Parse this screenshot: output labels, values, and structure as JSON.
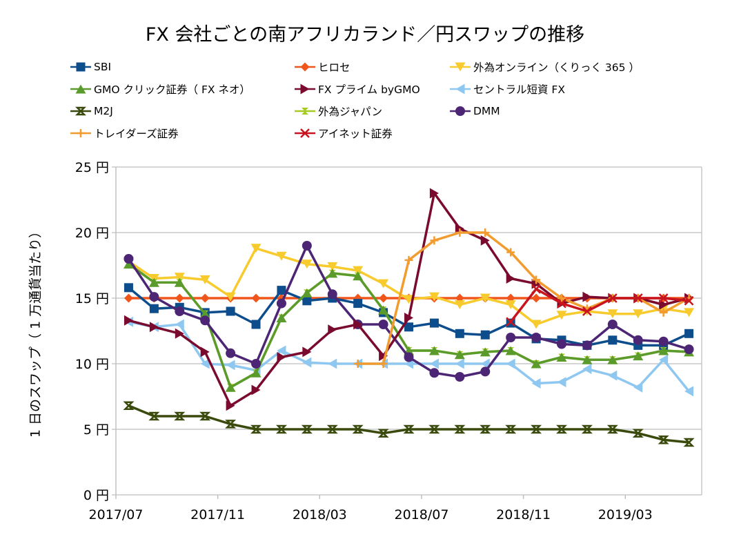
{
  "chart_data": {
    "type": "line",
    "title": "FX 会社ごとの南アフリカランド／円スワップの推移",
    "xlabel": "",
    "ylabel": "1 日のスワップ（ 1 万通貨当たり）",
    "ylim": [
      0,
      25
    ],
    "yticks": [
      0,
      5,
      10,
      15,
      20,
      25
    ],
    "ytick_labels": [
      "0 円",
      "5 円",
      "10 円",
      "15 円",
      "20 円",
      "25 円"
    ],
    "grid": "horizontal",
    "legend_position": "top",
    "x": [
      "2017/07",
      "2017/08",
      "2017/09",
      "2017/10",
      "2017/11",
      "2017/12",
      "2018/01",
      "2018/02",
      "2018/03",
      "2018/04",
      "2018/05",
      "2018/06",
      "2018/07",
      "2018/08",
      "2018/09",
      "2018/10",
      "2018/11",
      "2018/12",
      "2019/01",
      "2019/02",
      "2019/03",
      "2019/04",
      "2019/05"
    ],
    "xtick_labels": [
      "2017/07",
      "2017/11",
      "2018/03",
      "2018/07",
      "2018/11",
      "2019/03"
    ],
    "series": [
      {
        "name": "SBI",
        "color": "#0E4D8C",
        "marker": "square",
        "values": [
          15.8,
          14.2,
          14.3,
          13.9,
          14.0,
          13.0,
          15.6,
          14.8,
          15.0,
          14.6,
          13.9,
          12.8,
          13.1,
          12.3,
          12.2,
          13.1,
          11.9,
          11.8,
          11.4,
          11.8,
          11.4,
          11.4,
          12.3
        ]
      },
      {
        "name": "ヒロセ",
        "color": "#F0561C",
        "marker": "diamond",
        "values": [
          15,
          15,
          15,
          15,
          15,
          15,
          15,
          15,
          15,
          15,
          15,
          15,
          15,
          15,
          15,
          15,
          15,
          15,
          15,
          15,
          15,
          15,
          15
        ]
      },
      {
        "name": "外為オンライン（くりっく 365 ）",
        "color": "#F7CB2E",
        "marker": "triangle-down",
        "values": [
          17.8,
          16.5,
          16.6,
          16.4,
          15.1,
          18.8,
          18.2,
          17.6,
          17.4,
          17.1,
          16.1,
          14.9,
          15.1,
          14.5,
          15.0,
          14.5,
          13.0,
          13.7,
          14.0,
          13.8,
          13.8,
          14.2,
          13.9
        ]
      },
      {
        "name": "GMO クリック証券（ FX ネオ）",
        "color": "#5B9B2B",
        "marker": "triangle-up",
        "values": [
          17.6,
          16.2,
          16.2,
          13.8,
          8.2,
          9.3,
          13.5,
          15.4,
          16.9,
          16.7,
          14.1,
          11.0,
          11.0,
          10.7,
          10.9,
          11.0,
          10.0,
          10.5,
          10.3,
          10.3,
          10.6,
          11.0,
          10.9
        ]
      },
      {
        "name": "FX プライム byGMO",
        "color": "#7A0B2E",
        "marker": "triangle-right",
        "values": [
          13.3,
          12.8,
          12.3,
          10.9,
          6.8,
          8.0,
          10.5,
          10.9,
          12.6,
          13.0,
          10.6,
          13.5,
          23.0,
          20.3,
          19.4,
          16.5,
          16.1,
          14.6,
          15.1,
          15.0,
          15.0,
          14.5,
          15.0
        ]
      },
      {
        "name": "セントラル短資 FX",
        "color": "#8EC7F0",
        "marker": "triangle-left",
        "values": [
          13.2,
          12.8,
          13.0,
          10.0,
          9.9,
          9.5,
          11.0,
          10.1,
          10.0,
          10.0,
          10.0,
          10.0,
          10.0,
          10.0,
          10.0,
          10.0,
          8.5,
          8.6,
          9.6,
          9.1,
          8.2,
          10.3,
          7.9
        ]
      },
      {
        "name": "M2J",
        "color": "#3A4A0C",
        "marker": "hourglass",
        "values": [
          6.8,
          6.0,
          6.0,
          6.0,
          5.4,
          5.0,
          5.0,
          5.0,
          5.0,
          5.0,
          4.7,
          5.0,
          5.0,
          5.0,
          5.0,
          5.0,
          5.0,
          5.0,
          5.0,
          5.0,
          4.7,
          4.2,
          4.0
        ]
      },
      {
        "name": "外為ジャパン",
        "color": "#A6CC1F",
        "marker": "hourglass-small",
        "values": [
          17.6,
          16.2,
          16.2,
          13.8,
          8.2,
          9.3,
          13.5,
          15.4,
          16.9,
          16.7,
          14.1,
          11.0,
          11.0,
          10.7,
          10.9,
          11.0,
          10.0,
          10.5,
          10.3,
          10.3,
          10.6,
          11.0,
          10.9
        ]
      },
      {
        "name": "DMM",
        "color": "#4D2575",
        "marker": "circle",
        "values": [
          18.0,
          15.1,
          14.0,
          13.3,
          10.8,
          10.0,
          14.6,
          19.0,
          15.3,
          13.0,
          13.0,
          10.5,
          9.3,
          9.0,
          9.4,
          12.0,
          12.0,
          11.5,
          11.4,
          13.0,
          11.8,
          11.7,
          11.1
        ]
      },
      {
        "name": "トレイダーズ証券",
        "color": "#F29B2E",
        "marker": "plus",
        "values": [
          null,
          null,
          null,
          null,
          null,
          null,
          null,
          null,
          null,
          10.0,
          10.0,
          17.9,
          19.4,
          20.0,
          20.0,
          18.5,
          16.4,
          15.0,
          14.2,
          15.0,
          15.0,
          13.9,
          15.0
        ]
      },
      {
        "name": "アイネット証券",
        "color": "#C8141E",
        "marker": "x",
        "values": [
          null,
          null,
          null,
          null,
          null,
          null,
          null,
          null,
          null,
          null,
          null,
          null,
          null,
          null,
          null,
          13.2,
          15.7,
          14.6,
          14.0,
          15.0,
          15.0,
          15.0,
          14.8
        ]
      }
    ]
  }
}
